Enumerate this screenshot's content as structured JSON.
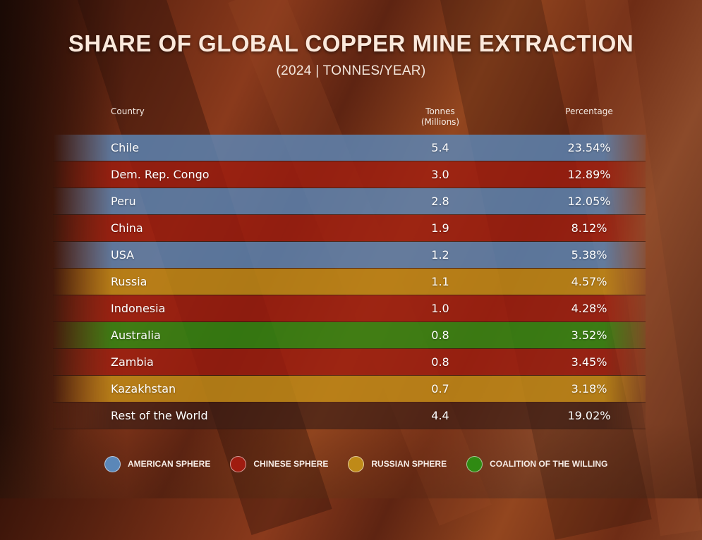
{
  "title": "SHARE OF GLOBAL COPPER MINE EXTRACTION",
  "subtitle": "(2024 | TONNES/YEAR)",
  "colors": {
    "american": "#5b87b8",
    "chinese": "#a01c10",
    "russian": "#bf8a18",
    "coalition": "#2f8a12",
    "other": "#3a1d16"
  },
  "chart_data": {
    "type": "table",
    "title": "SHARE OF GLOBAL COPPER MINE EXTRACTION",
    "subtitle": "(2024 | TONNES/YEAR)",
    "columns": [
      "Country",
      "Tonnes (Millions)",
      "Percentage"
    ],
    "header": {
      "country": "Country",
      "tonnes_line1": "Tonnes",
      "tonnes_line2": "(Millions)",
      "percentage": "Percentage"
    },
    "rows": [
      {
        "country": "Chile",
        "tonnes": "5.4",
        "percentage": "23.54%",
        "sphere": "american"
      },
      {
        "country": "Dem. Rep. Congo",
        "tonnes": "3.0",
        "percentage": "12.89%",
        "sphere": "chinese"
      },
      {
        "country": "Peru",
        "tonnes": "2.8",
        "percentage": "12.05%",
        "sphere": "american"
      },
      {
        "country": "China",
        "tonnes": "1.9",
        "percentage": "8.12%",
        "sphere": "chinese"
      },
      {
        "country": "USA",
        "tonnes": "1.2",
        "percentage": "5.38%",
        "sphere": "american"
      },
      {
        "country": "Russia",
        "tonnes": "1.1",
        "percentage": "4.57%",
        "sphere": "russian"
      },
      {
        "country": "Indonesia",
        "tonnes": "1.0",
        "percentage": "4.28%",
        "sphere": "chinese"
      },
      {
        "country": "Australia",
        "tonnes": "0.8",
        "percentage": "3.52%",
        "sphere": "coalition"
      },
      {
        "country": "Zambia",
        "tonnes": "0.8",
        "percentage": "3.45%",
        "sphere": "chinese"
      },
      {
        "country": "Kazakhstan",
        "tonnes": "0.7",
        "percentage": "3.18%",
        "sphere": "russian"
      },
      {
        "country": "Rest of the World",
        "tonnes": "4.4",
        "percentage": "19.02%",
        "sphere": "other"
      }
    ],
    "legend": [
      {
        "label": "AMERICAN SPHERE",
        "sphere": "american"
      },
      {
        "label": "CHINESE SPHERE",
        "sphere": "chinese"
      },
      {
        "label": "RUSSIAN SPHERE",
        "sphere": "russian"
      },
      {
        "label": "COALITION OF THE WILLING",
        "sphere": "coalition"
      }
    ]
  }
}
